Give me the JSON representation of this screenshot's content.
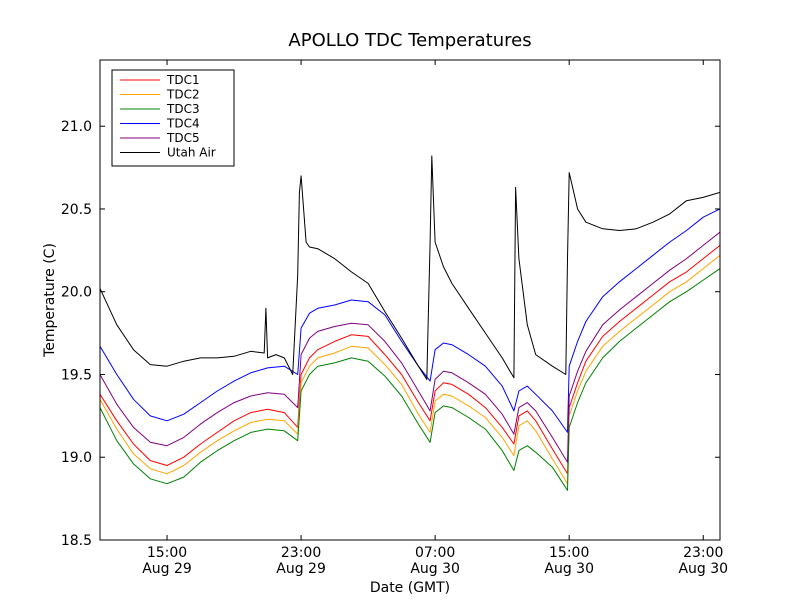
{
  "chart_data": {
    "type": "line",
    "title": "APOLLO TDC Temperatures",
    "xlabel": "Date (GMT)",
    "ylabel": "Temperature (C)",
    "x_unit": "hours since Aug 29 00:00 GMT",
    "xlim": [
      11.0,
      48.0
    ],
    "ylim": [
      18.5,
      21.4
    ],
    "grid": false,
    "legend_position": "top-left",
    "x_ticks": [
      {
        "value": 15,
        "time": "15:00",
        "date": "Aug 29"
      },
      {
        "value": 23,
        "time": "23:00",
        "date": "Aug 29"
      },
      {
        "value": 31,
        "time": "07:00",
        "date": "Aug 30"
      },
      {
        "value": 39,
        "time": "15:00",
        "date": "Aug 30"
      },
      {
        "value": 47,
        "time": "23:00",
        "date": "Aug 30"
      }
    ],
    "y_ticks": [
      "18.5",
      "19.0",
      "19.5",
      "20.0",
      "20.5",
      "21.0"
    ],
    "series": [
      {
        "name": "TDC1",
        "color": "#ff0000",
        "x": [
          11.0,
          12.0,
          13.0,
          14.0,
          15.0,
          16.0,
          17.0,
          18.0,
          19.0,
          20.0,
          21.0,
          22.0,
          22.8,
          23.0,
          23.5,
          24.0,
          25.0,
          26.0,
          27.0,
          28.0,
          29.0,
          30.0,
          30.7,
          31.0,
          31.5,
          32.0,
          33.0,
          34.0,
          35.0,
          35.7,
          36.0,
          36.5,
          37.0,
          38.0,
          38.9,
          39.0,
          39.5,
          40.0,
          41.0,
          42.0,
          43.0,
          44.0,
          45.0,
          46.0,
          47.0,
          48.0
        ],
        "y": [
          19.38,
          19.22,
          19.08,
          18.98,
          18.95,
          19.0,
          19.08,
          19.15,
          19.22,
          19.27,
          19.29,
          19.27,
          19.18,
          19.5,
          19.6,
          19.65,
          19.7,
          19.74,
          19.73,
          19.62,
          19.5,
          19.33,
          19.22,
          19.4,
          19.45,
          19.44,
          19.38,
          19.3,
          19.18,
          19.08,
          19.25,
          19.28,
          19.22,
          19.05,
          18.9,
          19.3,
          19.45,
          19.58,
          19.73,
          19.82,
          19.9,
          19.98,
          20.06,
          20.12,
          20.2,
          20.28
        ]
      },
      {
        "name": "TDC2",
        "color": "#ffa500",
        "x": [
          11.0,
          12.0,
          13.0,
          14.0,
          15.0,
          16.0,
          17.0,
          18.0,
          19.0,
          20.0,
          21.0,
          22.0,
          22.8,
          23.0,
          23.5,
          24.0,
          25.0,
          26.0,
          27.0,
          28.0,
          29.0,
          30.0,
          30.7,
          31.0,
          31.5,
          32.0,
          33.0,
          34.0,
          35.0,
          35.7,
          36.0,
          36.5,
          37.0,
          38.0,
          38.9,
          39.0,
          39.5,
          40.0,
          41.0,
          42.0,
          43.0,
          44.0,
          45.0,
          46.0,
          47.0,
          48.0
        ],
        "y": [
          19.35,
          19.17,
          19.02,
          18.93,
          18.9,
          18.95,
          19.03,
          19.1,
          19.16,
          19.21,
          19.23,
          19.22,
          19.14,
          19.45,
          19.55,
          19.6,
          19.63,
          19.67,
          19.66,
          19.56,
          19.44,
          19.26,
          19.15,
          19.34,
          19.38,
          19.37,
          19.31,
          19.24,
          19.12,
          19.01,
          19.19,
          19.22,
          19.16,
          18.99,
          18.84,
          19.25,
          19.4,
          19.52,
          19.67,
          19.76,
          19.84,
          19.92,
          20.0,
          20.06,
          20.14,
          20.22
        ]
      },
      {
        "name": "TDC3",
        "color": "#008000",
        "x": [
          11.0,
          12.0,
          13.0,
          14.0,
          15.0,
          16.0,
          17.0,
          18.0,
          19.0,
          20.0,
          21.0,
          22.0,
          22.8,
          23.0,
          23.5,
          24.0,
          25.0,
          26.0,
          27.0,
          28.0,
          29.0,
          30.0,
          30.7,
          31.0,
          31.5,
          32.0,
          33.0,
          34.0,
          35.0,
          35.7,
          36.0,
          36.5,
          37.0,
          38.0,
          38.9,
          39.0,
          39.5,
          40.0,
          41.0,
          42.0,
          43.0,
          44.0,
          45.0,
          46.0,
          47.0,
          48.0
        ],
        "y": [
          19.3,
          19.1,
          18.96,
          18.87,
          18.84,
          18.88,
          18.97,
          19.04,
          19.1,
          19.15,
          19.17,
          19.16,
          19.1,
          19.4,
          19.5,
          19.55,
          19.57,
          19.6,
          19.58,
          19.49,
          19.37,
          19.2,
          19.09,
          19.27,
          19.31,
          19.3,
          19.24,
          19.17,
          19.04,
          18.92,
          19.04,
          19.07,
          19.03,
          18.94,
          18.8,
          19.18,
          19.33,
          19.45,
          19.6,
          19.7,
          19.78,
          19.86,
          19.94,
          20.0,
          20.07,
          20.14
        ]
      },
      {
        "name": "TDC4",
        "color": "#0000ff",
        "x": [
          11.0,
          12.0,
          13.0,
          14.0,
          15.0,
          16.0,
          17.0,
          18.0,
          19.0,
          20.0,
          21.0,
          22.0,
          22.8,
          23.0,
          23.5,
          24.0,
          25.0,
          26.0,
          27.0,
          28.0,
          29.0,
          30.0,
          30.7,
          31.0,
          31.5,
          32.0,
          33.0,
          34.0,
          35.0,
          35.7,
          36.0,
          36.5,
          37.0,
          38.0,
          38.9,
          39.0,
          39.5,
          40.0,
          41.0,
          42.0,
          43.0,
          44.0,
          45.0,
          46.0,
          47.0,
          48.0
        ],
        "y": [
          19.67,
          19.5,
          19.35,
          19.25,
          19.22,
          19.26,
          19.33,
          19.4,
          19.46,
          19.51,
          19.54,
          19.55,
          19.5,
          19.78,
          19.87,
          19.9,
          19.92,
          19.95,
          19.94,
          19.86,
          19.7,
          19.55,
          19.46,
          19.65,
          19.69,
          19.68,
          19.62,
          19.55,
          19.43,
          19.28,
          19.4,
          19.43,
          19.38,
          19.28,
          19.15,
          19.55,
          19.7,
          19.82,
          19.97,
          20.06,
          20.14,
          20.22,
          20.3,
          20.37,
          20.45,
          20.5
        ]
      },
      {
        "name": "TDC5",
        "color": "#800080",
        "x": [
          11.0,
          12.0,
          13.0,
          14.0,
          15.0,
          16.0,
          17.0,
          18.0,
          19.0,
          20.0,
          21.0,
          22.0,
          22.8,
          23.0,
          23.5,
          24.0,
          25.0,
          26.0,
          27.0,
          28.0,
          29.0,
          30.0,
          30.7,
          31.0,
          31.5,
          32.0,
          33.0,
          34.0,
          35.0,
          35.7,
          36.0,
          36.5,
          37.0,
          38.0,
          38.9,
          39.0,
          39.5,
          40.0,
          41.0,
          42.0,
          43.0,
          44.0,
          45.0,
          46.0,
          47.0,
          48.0
        ],
        "y": [
          19.5,
          19.32,
          19.18,
          19.09,
          19.07,
          19.12,
          19.2,
          19.27,
          19.33,
          19.37,
          19.39,
          19.38,
          19.3,
          19.62,
          19.72,
          19.76,
          19.79,
          19.81,
          19.8,
          19.7,
          19.57,
          19.4,
          19.28,
          19.47,
          19.52,
          19.51,
          19.45,
          19.38,
          19.26,
          19.14,
          19.3,
          19.33,
          19.28,
          19.12,
          18.97,
          19.37,
          19.52,
          19.64,
          19.8,
          19.89,
          19.97,
          20.05,
          20.13,
          20.2,
          20.28,
          20.36
        ]
      },
      {
        "name": "Utah Air",
        "color": "#000000",
        "x": [
          11.0,
          12.0,
          13.0,
          14.0,
          15.0,
          16.0,
          17.0,
          18.0,
          19.0,
          20.0,
          20.8,
          20.9,
          21.0,
          21.5,
          22.0,
          22.5,
          22.8,
          22.9,
          23.0,
          23.3,
          23.5,
          24.0,
          25.0,
          26.0,
          27.0,
          28.0,
          29.0,
          30.0,
          30.5,
          30.7,
          30.8,
          31.0,
          31.5,
          32.0,
          33.0,
          34.0,
          35.0,
          35.7,
          35.8,
          36.0,
          36.5,
          37.0,
          38.0,
          38.8,
          38.9,
          39.0,
          39.5,
          40.0,
          41.0,
          42.0,
          43.0,
          44.0,
          45.0,
          46.0,
          47.0,
          48.0
        ],
        "y": [
          20.02,
          19.8,
          19.65,
          19.56,
          19.55,
          19.58,
          19.6,
          19.6,
          19.61,
          19.64,
          19.63,
          19.9,
          19.6,
          19.62,
          19.6,
          19.5,
          20.1,
          20.6,
          20.7,
          20.3,
          20.27,
          20.26,
          20.2,
          20.12,
          20.05,
          19.88,
          19.72,
          19.55,
          19.47,
          20.3,
          20.82,
          20.3,
          20.15,
          20.05,
          19.9,
          19.75,
          19.6,
          19.48,
          20.63,
          20.2,
          19.8,
          19.62,
          19.55,
          19.5,
          20.2,
          20.72,
          20.5,
          20.42,
          20.38,
          20.37,
          20.38,
          20.42,
          20.47,
          20.55,
          20.57,
          20.6
        ]
      }
    ]
  }
}
